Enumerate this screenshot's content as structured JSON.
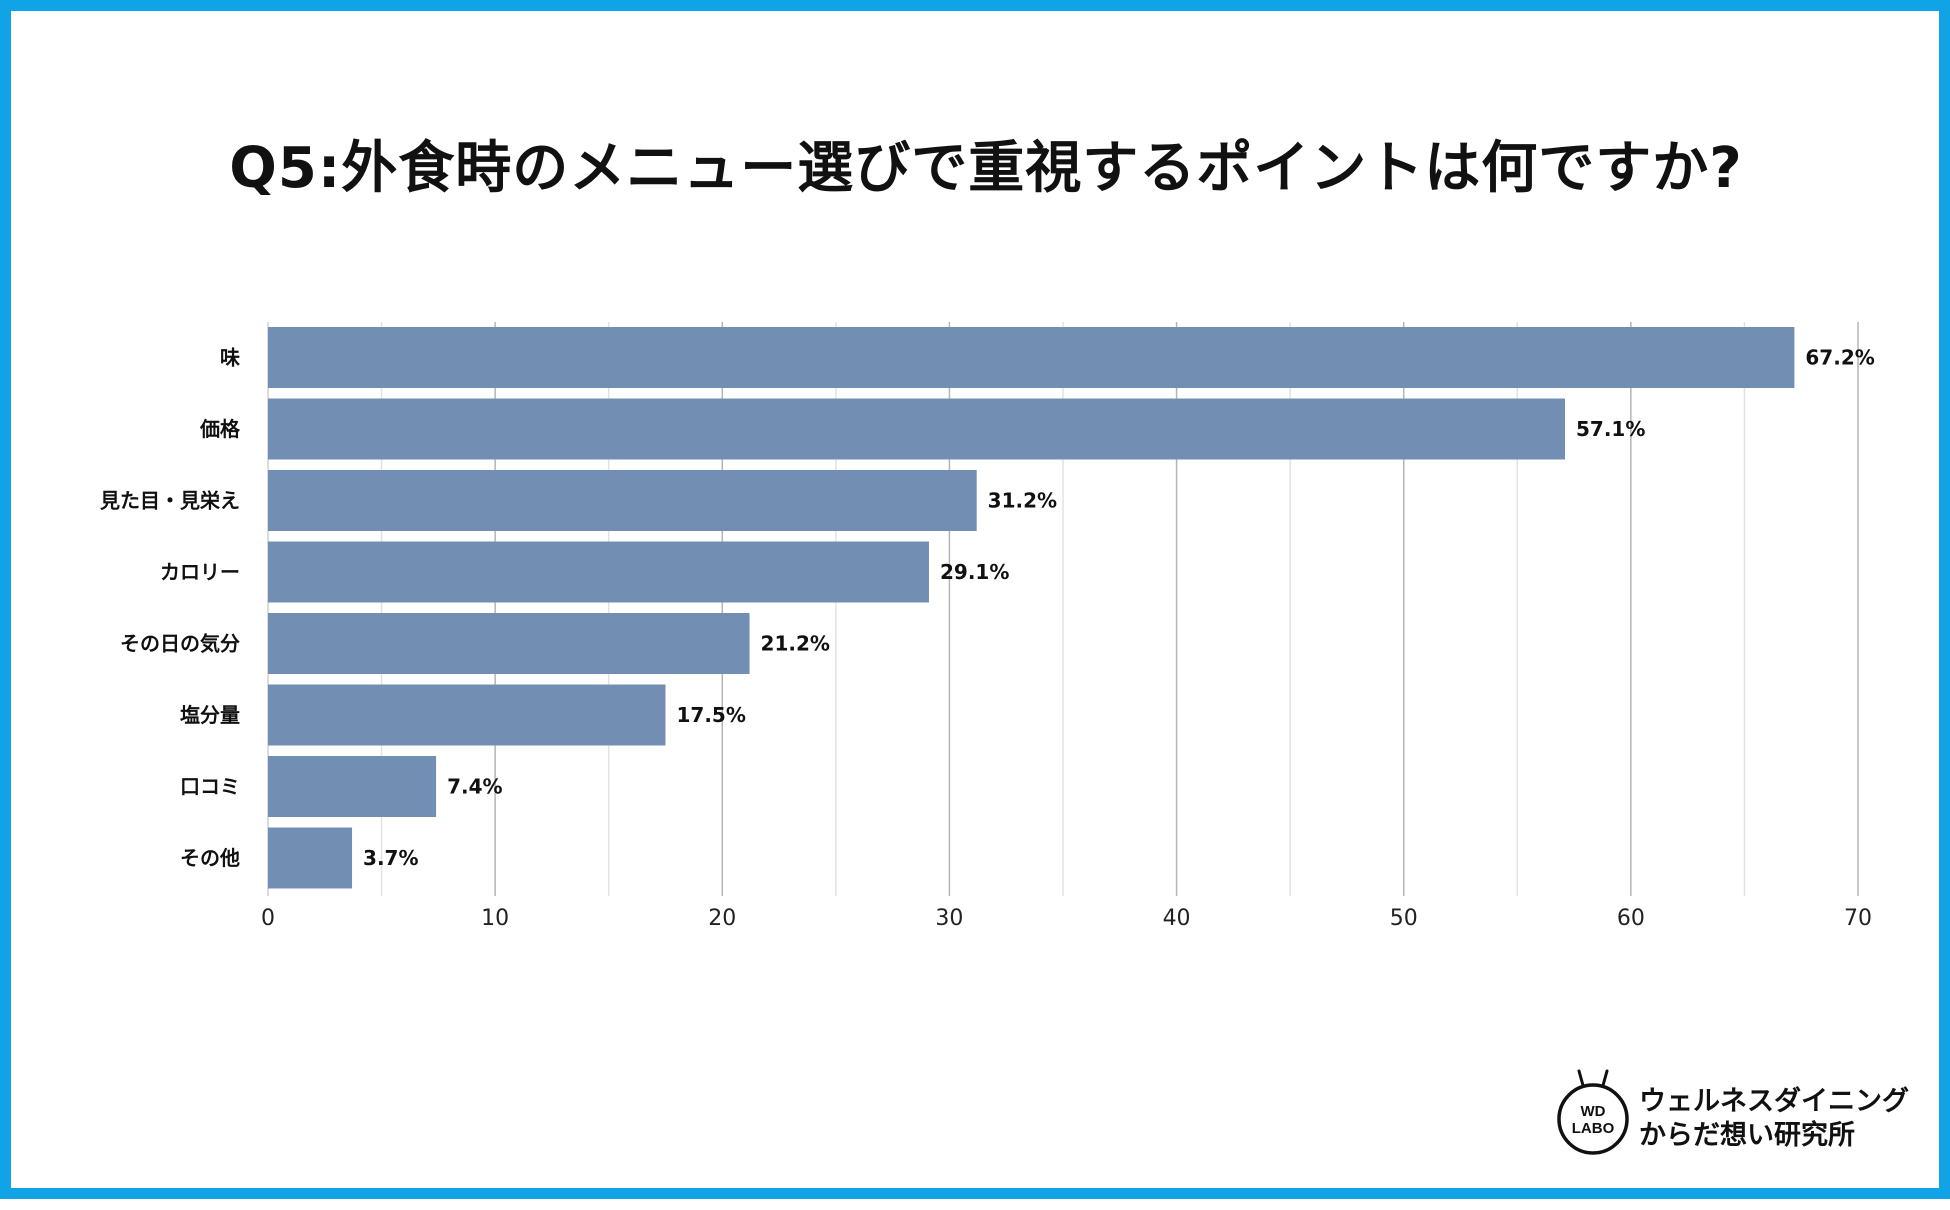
{
  "title": "Q5:外食時のメニュー選びで重視するポイントは何ですか?",
  "colors": {
    "border": "#10a3e6",
    "bar": "#728fb3",
    "grid_major": "#b5b5b5",
    "grid_minor": "#e2e2e2"
  },
  "chart_data": {
    "type": "bar",
    "orientation": "horizontal",
    "title": "Q5:外食時のメニュー選びで重視するポイントは何ですか?",
    "categories": [
      "味",
      "価格",
      "見た目・見栄え",
      "カロリー",
      "その日の気分",
      "塩分量",
      "口コミ",
      "その他"
    ],
    "values": [
      67.2,
      57.1,
      31.2,
      29.1,
      21.2,
      17.5,
      7.4,
      3.7
    ],
    "value_labels": [
      "67.2%",
      "57.1%",
      "31.2%",
      "29.1%",
      "21.2%",
      "17.5%",
      "7.4%",
      "3.7%"
    ],
    "xlim": [
      0,
      70
    ],
    "xticks": [
      0,
      10,
      20,
      30,
      40,
      50,
      60,
      70
    ],
    "minor_step": 5,
    "xlabel": "",
    "ylabel": "",
    "grid": true,
    "legend": "none"
  },
  "logo": {
    "badge_line1": "WD",
    "badge_line2": "LABO",
    "text_line1": "ウェルネスダイニング",
    "text_line2": "からだ想い研究所"
  }
}
